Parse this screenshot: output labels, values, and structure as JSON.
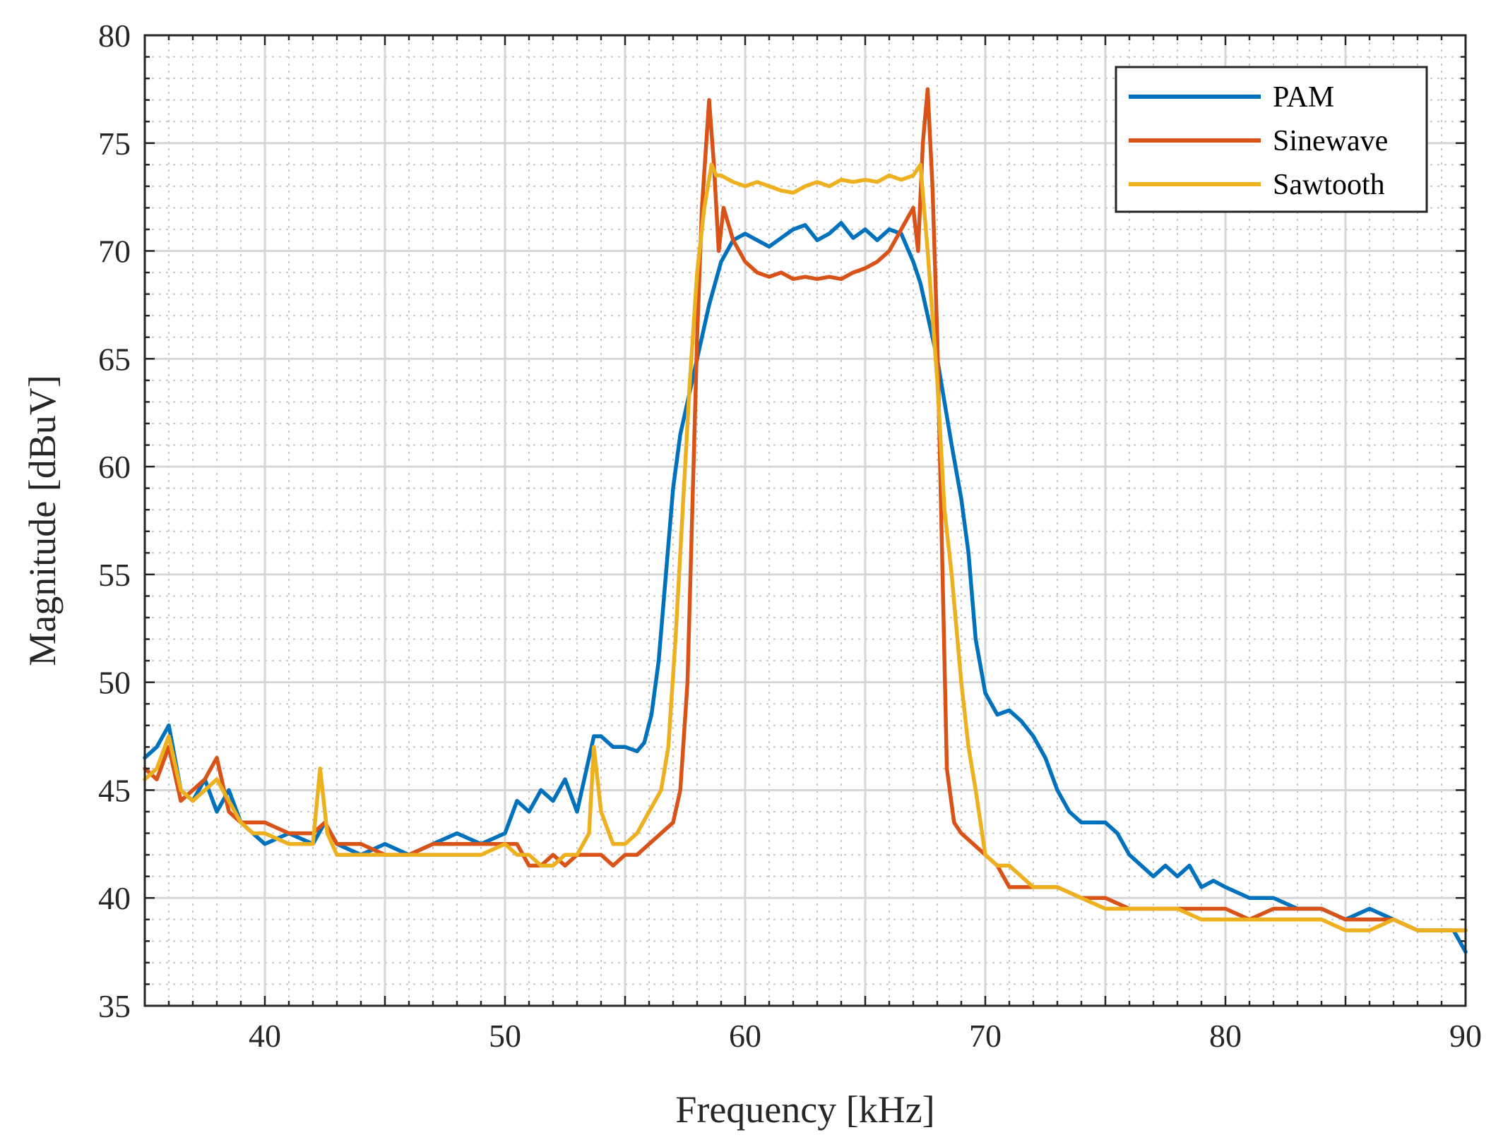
{
  "chart_data": {
    "type": "line",
    "title": "",
    "xlabel": "Frequency [kHz]",
    "ylabel": "Magnitude [dBuV]",
    "xlim": [
      35,
      90
    ],
    "ylim": [
      35,
      80
    ],
    "xticks": [
      40,
      50,
      60,
      70,
      80,
      90
    ],
    "yticks": [
      35,
      40,
      45,
      50,
      55,
      60,
      65,
      70,
      75,
      80
    ],
    "grid": true,
    "minor_grid": true,
    "legend_position": "top-right",
    "series": [
      {
        "name": "PAM",
        "color": "#0072BD",
        "x": [
          35,
          35.5,
          36,
          36.5,
          37,
          37.5,
          38,
          38.5,
          39,
          39.5,
          40,
          41,
          42,
          42.5,
          43,
          44,
          45,
          46,
          47,
          48,
          49,
          50,
          50.5,
          51,
          51.5,
          52,
          52.5,
          53,
          53.3,
          53.7,
          54,
          54.5,
          55,
          55.5,
          55.8,
          56.1,
          56.4,
          56.7,
          57,
          57.3,
          57.7,
          58,
          58.5,
          59,
          59.5,
          60,
          60.5,
          61,
          61.5,
          62,
          62.5,
          63,
          63.5,
          64,
          64.5,
          65,
          65.5,
          66,
          66.5,
          67,
          67.3,
          67.6,
          68,
          68.3,
          68.6,
          69,
          69.3,
          69.6,
          70,
          70.5,
          71,
          71.5,
          72,
          72.5,
          73,
          73.5,
          74,
          74.5,
          75,
          75.5,
          76,
          76.5,
          77,
          77.5,
          78,
          78.5,
          79,
          79.5,
          80,
          81,
          82,
          83,
          84,
          85,
          86,
          87,
          88,
          89,
          89.5,
          90
        ],
        "y": [
          46.5,
          47,
          48,
          45,
          44.5,
          45.5,
          44,
          45,
          43.5,
          43,
          42.5,
          43,
          42.5,
          43.5,
          42.5,
          42,
          42.5,
          42,
          42.5,
          43,
          42.5,
          43,
          44.5,
          44,
          45,
          44.5,
          45.5,
          44,
          45.5,
          47.5,
          47.5,
          47,
          47,
          46.8,
          47.2,
          48.5,
          51,
          55,
          59,
          61.5,
          63.5,
          65,
          67.5,
          69.5,
          70.5,
          70.8,
          70.5,
          70.2,
          70.6,
          71,
          71.2,
          70.5,
          70.8,
          71.3,
          70.6,
          71,
          70.5,
          71,
          70.8,
          69.5,
          68.5,
          67,
          65,
          63,
          61,
          58.5,
          56,
          52,
          49.5,
          48.5,
          48.7,
          48.2,
          47.5,
          46.5,
          45,
          44,
          43.5,
          43.5,
          43.5,
          43,
          42,
          41.5,
          41,
          41.5,
          41,
          41.5,
          40.5,
          40.8,
          40.5,
          40,
          40,
          39.5,
          39.5,
          39,
          39.5,
          39,
          38.5,
          38.5,
          38.5,
          37.5
        ]
      },
      {
        "name": "Sinewave",
        "color": "#D95319",
        "x": [
          35,
          35.5,
          36,
          36.5,
          37,
          37.5,
          38,
          38.5,
          39,
          39.5,
          40,
          41,
          42,
          42.5,
          43,
          44,
          45,
          46,
          47,
          48,
          49,
          50,
          50.5,
          51,
          51.5,
          52,
          52.5,
          53,
          53.5,
          54,
          54.5,
          55,
          55.5,
          56,
          56.5,
          57,
          57.3,
          57.6,
          57.8,
          58,
          58.2,
          58.5,
          58.7,
          58.9,
          59.1,
          59.5,
          60,
          60.5,
          61,
          61.5,
          62,
          62.5,
          63,
          63.5,
          64,
          64.5,
          65,
          65.5,
          66,
          66.5,
          67,
          67.2,
          67.4,
          67.6,
          67.8,
          68,
          68.2,
          68.4,
          68.7,
          69,
          69.5,
          70,
          70.5,
          71,
          72,
          73,
          74,
          75,
          76,
          77,
          78,
          79,
          80,
          81,
          82,
          83,
          84,
          85,
          86,
          87,
          88,
          89,
          90
        ],
        "y": [
          46,
          45.5,
          47,
          44.5,
          45,
          45.5,
          46.5,
          44,
          43.5,
          43.5,
          43.5,
          43,
          43,
          43.5,
          42.5,
          42.5,
          42,
          42,
          42.5,
          42.5,
          42.5,
          42.5,
          42.5,
          41.5,
          41.5,
          42,
          41.5,
          42,
          42,
          42,
          41.5,
          42,
          42,
          42.5,
          43,
          43.5,
          45,
          50,
          58,
          66,
          72,
          77,
          74,
          70,
          72,
          70.5,
          69.5,
          69,
          68.8,
          69,
          68.7,
          68.8,
          68.7,
          68.8,
          68.7,
          69,
          69.2,
          69.5,
          70,
          71,
          72,
          70,
          75,
          77.5,
          73,
          66,
          56,
          46,
          43.5,
          43,
          42.5,
          42,
          41.5,
          40.5,
          40.5,
          40.5,
          40,
          40,
          39.5,
          39.5,
          39.5,
          39.5,
          39.5,
          39,
          39.5,
          39.5,
          39.5,
          39,
          39,
          39,
          38.5,
          38.5,
          38.5
        ]
      },
      {
        "name": "Sawtooth",
        "color": "#EDB120",
        "x": [
          35,
          35.5,
          36,
          36.5,
          37,
          37.5,
          38,
          38.5,
          39,
          39.5,
          40,
          41,
          42,
          42.3,
          42.6,
          43,
          44,
          45,
          46,
          47,
          48,
          49,
          50,
          50.5,
          51,
          51.5,
          52,
          52.5,
          53,
          53.5,
          53.7,
          54,
          54.5,
          55,
          55.5,
          56,
          56.5,
          56.8,
          57.1,
          57.4,
          57.7,
          58,
          58.3,
          58.6,
          58.8,
          59,
          59.5,
          60,
          60.5,
          61,
          61.5,
          62,
          62.5,
          63,
          63.5,
          64,
          64.5,
          65,
          65.5,
          66,
          66.5,
          67,
          67.3,
          67.6,
          68,
          68.3,
          68.6,
          69,
          69.3,
          69.6,
          70,
          70.5,
          71,
          72,
          73,
          74,
          75,
          76,
          77,
          78,
          79,
          80,
          81,
          82,
          83,
          84,
          85,
          86,
          87,
          88,
          89,
          90
        ],
        "y": [
          45.5,
          46,
          47.5,
          45,
          44.5,
          45,
          45.5,
          44.5,
          43.5,
          43,
          43,
          42.5,
          42.5,
          46,
          43,
          42,
          42,
          42,
          42,
          42,
          42,
          42,
          42.5,
          42,
          42,
          41.5,
          41.5,
          42,
          42,
          43,
          47,
          44,
          42.5,
          42.5,
          43,
          44,
          45,
          47,
          52,
          58,
          64,
          69,
          72,
          74,
          73.5,
          73.5,
          73.2,
          73,
          73.2,
          73,
          72.8,
          72.7,
          73,
          73.2,
          73,
          73.3,
          73.2,
          73.3,
          73.2,
          73.5,
          73.3,
          73.5,
          74,
          70,
          64,
          58,
          55,
          50,
          47,
          45,
          42,
          41.5,
          41.5,
          40.5,
          40.5,
          40,
          39.5,
          39.5,
          39.5,
          39.5,
          39,
          39,
          39,
          39,
          39,
          39,
          38.5,
          38.5,
          39,
          38.5,
          38.5,
          38.5
        ]
      }
    ]
  }
}
